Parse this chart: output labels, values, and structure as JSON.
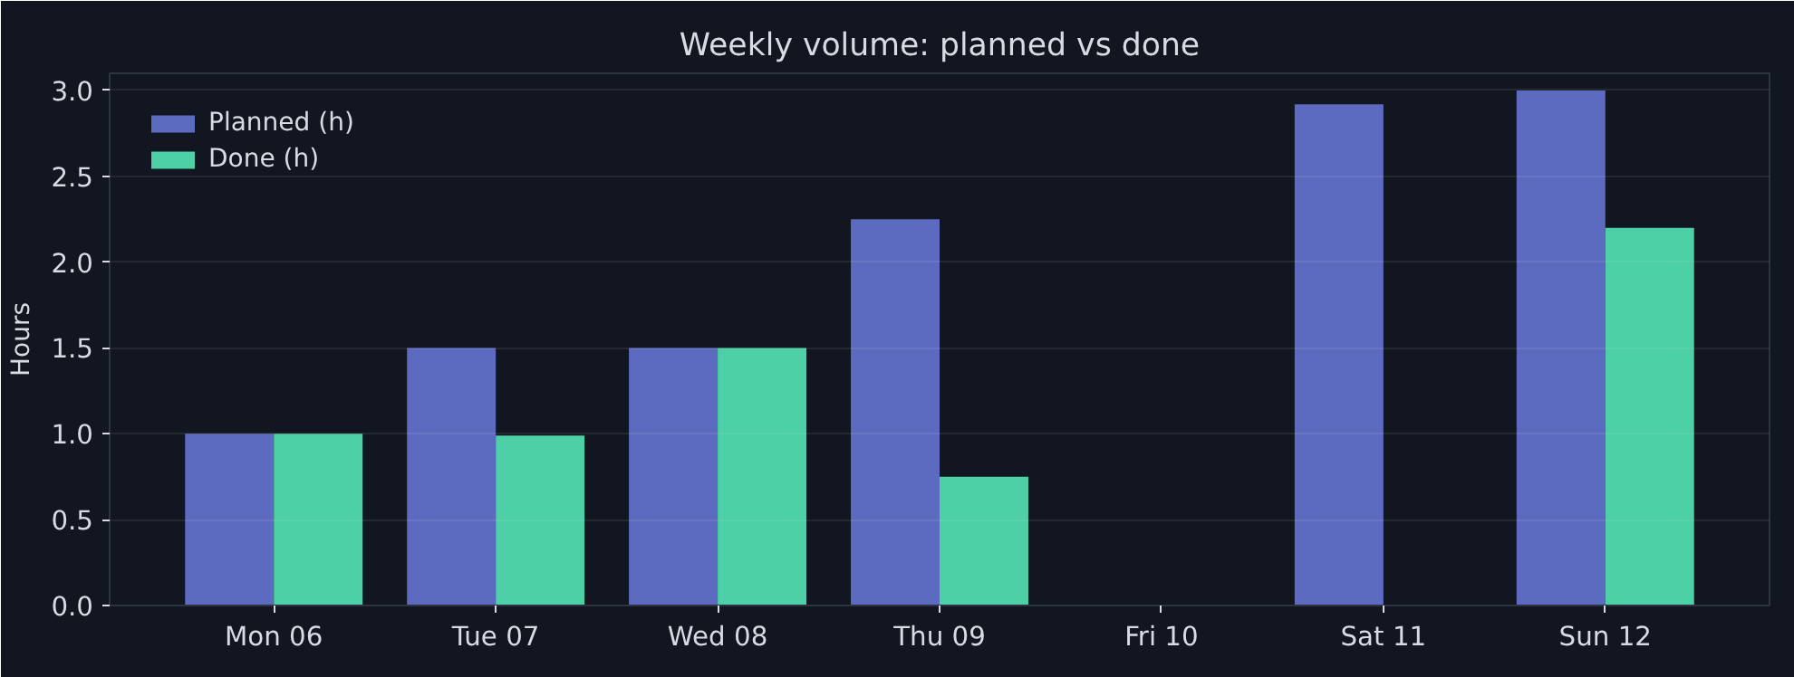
{
  "chart_data": {
    "type": "bar",
    "title": "Weekly volume: planned vs done",
    "ylabel": "Hours",
    "categories": [
      "Mon 06",
      "Tue 07",
      "Wed 08",
      "Thu 09",
      "Fri 10",
      "Sat 11",
      "Sun 12"
    ],
    "series": [
      {
        "name": "Planned (h)",
        "color": "#5c6bc0",
        "values": [
          1.0,
          1.5,
          1.5,
          2.25,
          0,
          2.92,
          3.0
        ]
      },
      {
        "name": "Done (h)",
        "color": "#4dd0a6",
        "values": [
          1.0,
          0.99,
          1.5,
          0.75,
          0,
          0,
          2.2
        ]
      }
    ],
    "ylim": [
      0,
      3.1
    ],
    "yticks": [
      {
        "value": 0,
        "label": "0.0"
      },
      {
        "value": 0.5,
        "label": "0.5"
      },
      {
        "value": 1,
        "label": "1.0"
      },
      {
        "value": 1.5,
        "label": "1.5"
      },
      {
        "value": 2,
        "label": "2.0"
      },
      {
        "value": 2.5,
        "label": "2.5"
      },
      {
        "value": 3,
        "label": "3.0"
      }
    ],
    "grid": "y",
    "legend": "top left"
  }
}
